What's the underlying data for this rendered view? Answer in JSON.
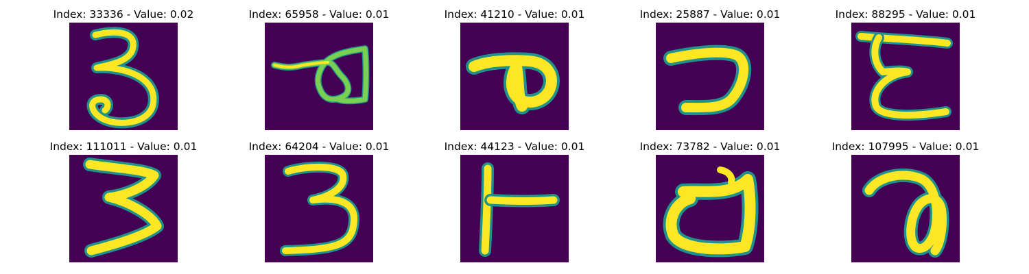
{
  "figure": {
    "colormap": "viridis",
    "background_color": "#440154",
    "stroke_colors": [
      "#21918c",
      "#7ad151",
      "#fde725"
    ],
    "panels": [
      {
        "title": "Index: 33336 - Value: 0.02",
        "glyph": "three-curl-icon"
      },
      {
        "title": "Index: 65958 - Value: 0.01",
        "glyph": "flag-loop-icon"
      },
      {
        "title": "Index: 41210 - Value: 0.01",
        "glyph": "p-loop-icon"
      },
      {
        "title": "Index: 25887 - Value: 0.01",
        "glyph": "hook-seven-icon"
      },
      {
        "title": "Index: 88295 - Value: 0.01",
        "glyph": "epsilon-bar-icon"
      },
      {
        "title": "Index: 111011 - Value: 0.01",
        "glyph": "three-zigzag-icon"
      },
      {
        "title": "Index: 64204 - Value: 0.01",
        "glyph": "three-flat-icon"
      },
      {
        "title": "Index: 44123 - Value: 0.01",
        "glyph": "t-sideways-icon"
      },
      {
        "title": "Index: 73782 - Value: 0.01",
        "glyph": "d-loop-icon"
      },
      {
        "title": "Index: 107995 - Value: 0.01",
        "glyph": "a-loop-icon"
      }
    ]
  }
}
